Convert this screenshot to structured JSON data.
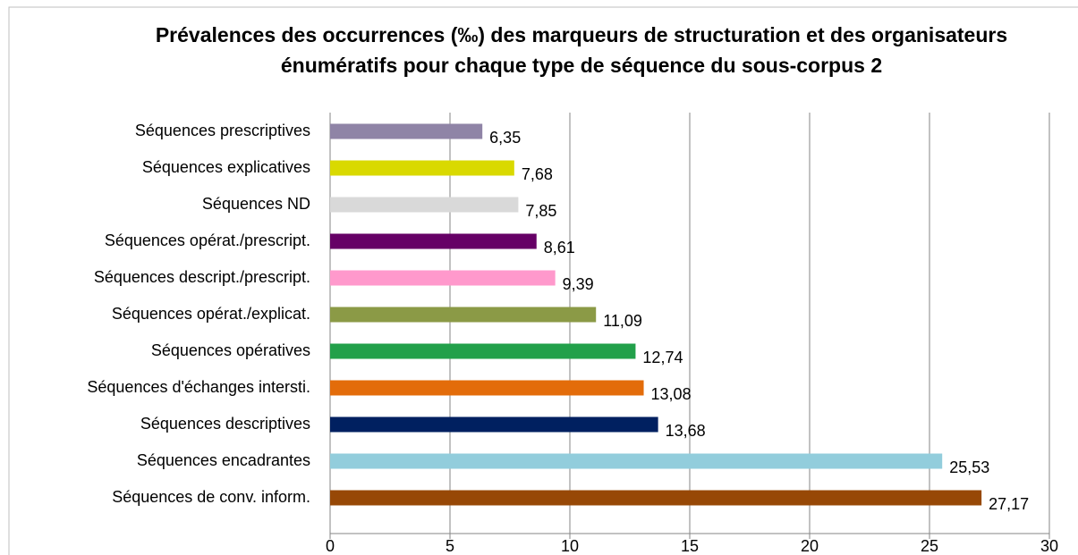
{
  "chart_data": {
    "type": "barh",
    "title": "Prévalences des occurrences (‰) des marqueurs de structuration et des organisateurs énumératifs pour chaque type de séquence du sous-corpus 2",
    "categories": [
      "Séquences prescriptives",
      "Séquences explicatives",
      "Séquences ND",
      "Séquences opérat./prescript.",
      "Séquences descript./prescript.",
      "Séquences opérat./explicat.",
      "Séquences opératives",
      "Séquences d'échanges intersti.",
      "Séquences descriptives",
      "Séquences encadrantes",
      "Séquences de conv. inform."
    ],
    "values": [
      6.35,
      7.68,
      7.85,
      8.61,
      9.39,
      11.09,
      12.74,
      13.08,
      13.68,
      25.53,
      27.17
    ],
    "value_labels": [
      "6,35",
      "7,68",
      "7,85",
      "8,61",
      "9,39",
      "11,09",
      "12,74",
      "13,08",
      "13,68",
      "25,53",
      "27,17"
    ],
    "colors": [
      "#8f84a6",
      "#d9d900",
      "#d9d9d9",
      "#660066",
      "#ff99cc",
      "#8b9a46",
      "#22a04a",
      "#e36c0a",
      "#002060",
      "#92cddc",
      "#974806"
    ],
    "xlim": [
      0,
      30
    ],
    "xticks": [
      0,
      5,
      10,
      15,
      20,
      25,
      30
    ],
    "grid": true
  }
}
